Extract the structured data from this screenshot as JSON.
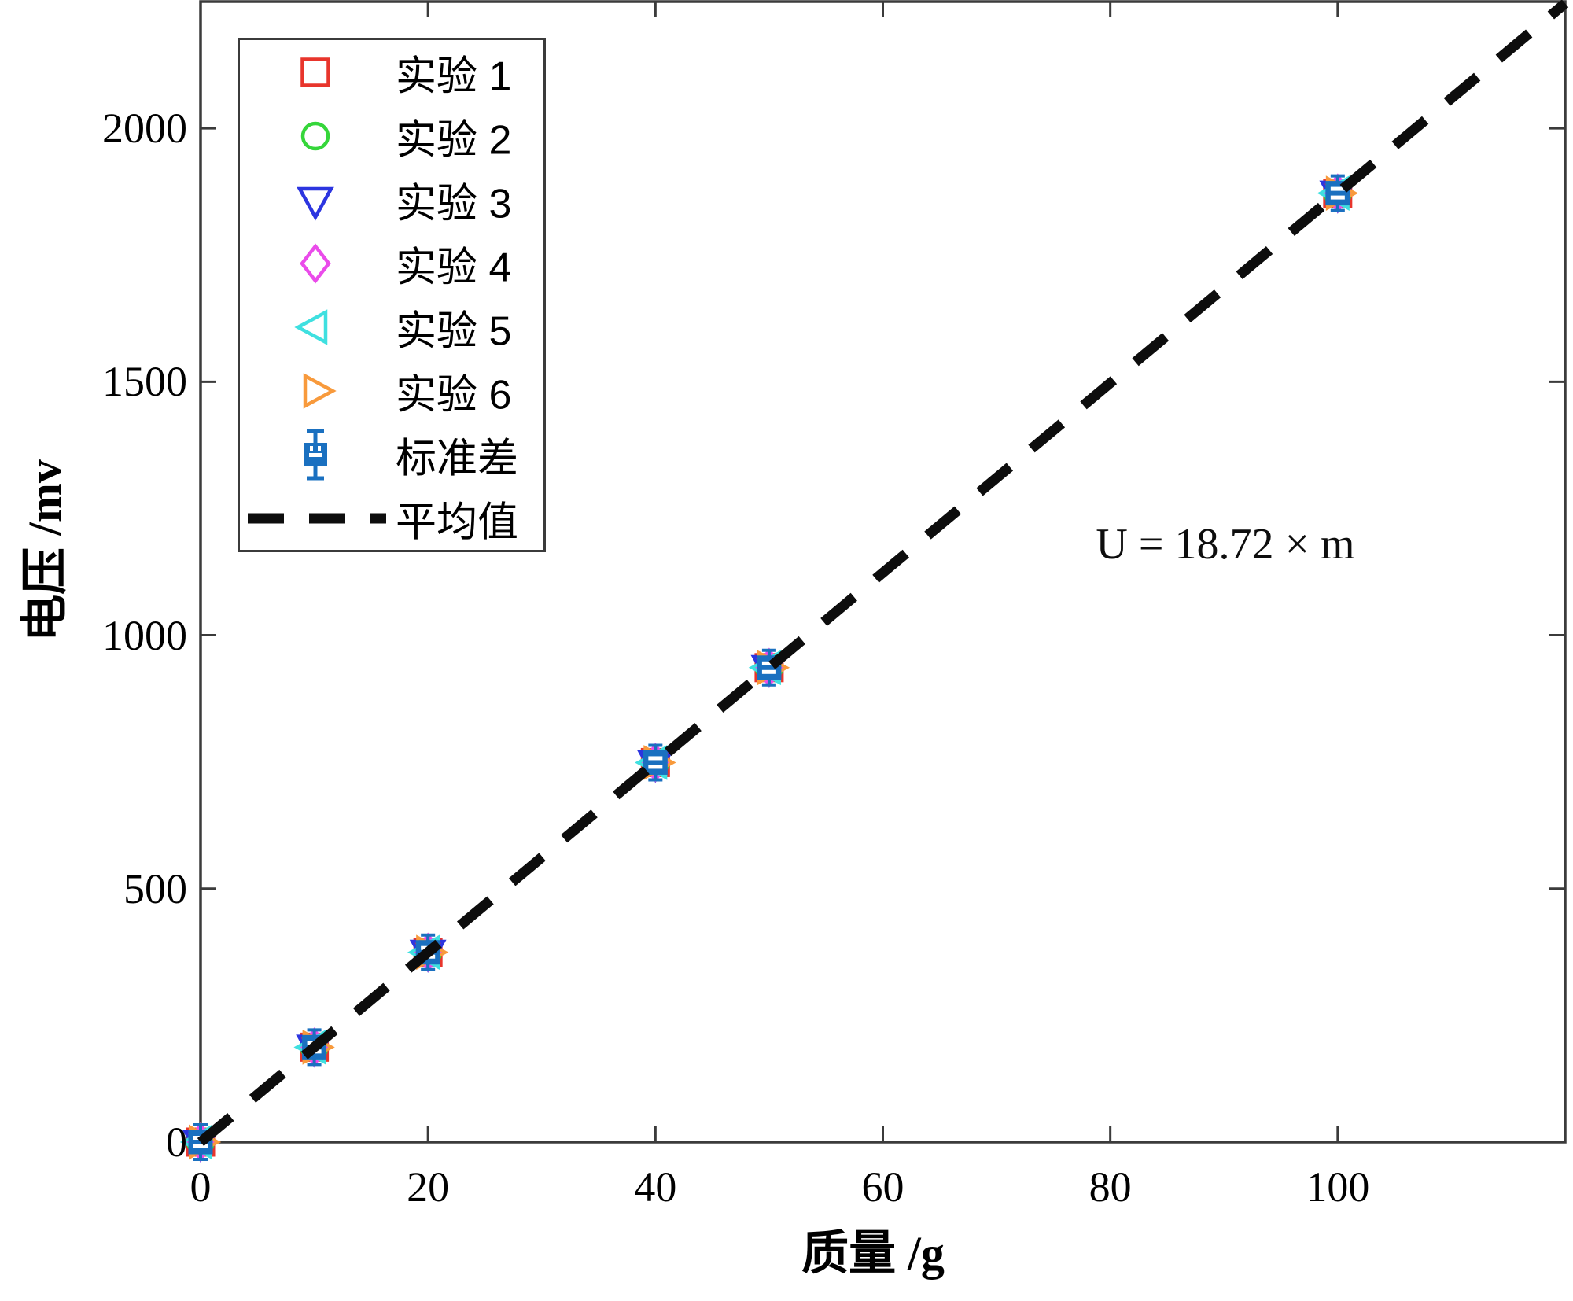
{
  "figure": {
    "background": "#ffffff",
    "frame_color": "#3b3b3b"
  },
  "chart_data": {
    "type": "scatter",
    "title": "",
    "xlabel": "质量 /g",
    "ylabel": "电压 /mv",
    "annotation": "U = 18.72 × m",
    "xlim": [
      0,
      120
    ],
    "ylim": [
      0,
      2250
    ],
    "grid": false,
    "x_tick_labels": [
      "0",
      "20",
      "40",
      "60",
      "80",
      "100"
    ],
    "x_tick_values": [
      0,
      20,
      40,
      60,
      80,
      100
    ],
    "y_tick_labels": [
      "0",
      "500",
      "1000",
      "1500",
      "2000"
    ],
    "y_tick_values": [
      0,
      500,
      1000,
      1500,
      2000
    ],
    "x_g": [
      0,
      10,
      20,
      40,
      50,
      100
    ],
    "mean_voltage_mv": [
      0,
      187.2,
      374.4,
      748.8,
      936.0,
      1872.0
    ],
    "fit": {
      "slope_mv_per_g": 18.72,
      "equation": "U = 18.72 × m"
    },
    "series": [
      {
        "name": "实验 1",
        "marker": "square",
        "color": "#e8352c",
        "x_g": [
          0,
          10,
          20,
          40,
          50,
          100
        ],
        "values_mv": [
          0,
          187.2,
          374.4,
          748.8,
          936.0,
          1872.0
        ]
      },
      {
        "name": "实验 2",
        "marker": "circle",
        "color": "#35d63a",
        "x_g": [
          0,
          10,
          20,
          40,
          50,
          100
        ],
        "values_mv": [
          0,
          187.2,
          374.4,
          748.8,
          936.0,
          1872.0
        ]
      },
      {
        "name": "实验 3",
        "marker": "triangle-down",
        "color": "#2c35e0",
        "x_g": [
          0,
          10,
          20,
          40,
          50,
          100
        ],
        "values_mv": [
          0,
          187.2,
          374.4,
          748.8,
          936.0,
          1872.0
        ]
      },
      {
        "name": "实验 4",
        "marker": "diamond",
        "color": "#ea4bea",
        "x_g": [
          0,
          10,
          20,
          40,
          50,
          100
        ],
        "values_mv": [
          0,
          187.2,
          374.4,
          748.8,
          936.0,
          1872.0
        ]
      },
      {
        "name": "实验 5",
        "marker": "triangle-left",
        "color": "#3fe0e0",
        "x_g": [
          0,
          10,
          20,
          40,
          50,
          100
        ],
        "values_mv": [
          0,
          187.2,
          374.4,
          748.8,
          936.0,
          1872.0
        ]
      },
      {
        "name": "实验 6",
        "marker": "triangle-right",
        "color": "#f89a3c",
        "x_g": [
          0,
          10,
          20,
          40,
          50,
          100
        ],
        "values_mv": [
          0,
          187.2,
          374.4,
          748.8,
          936.0,
          1872.0
        ]
      }
    ],
    "errorbar_series": {
      "name": "标准差",
      "color": "#1a70c0",
      "note": "standard-deviation error bars are smaller than the marker at every point"
    },
    "mean_line": {
      "name": "平均值",
      "style": "dashed",
      "color": "#0d0d0d"
    },
    "legend": {
      "position": "top-left",
      "entries": [
        {
          "label": "实验 1",
          "marker": "square",
          "color": "#e8352c"
        },
        {
          "label": "实验 2",
          "marker": "circle",
          "color": "#35d63a"
        },
        {
          "label": "实验 3",
          "marker": "triangle-down",
          "color": "#2c35e0"
        },
        {
          "label": "实验 4",
          "marker": "diamond",
          "color": "#ea4bea"
        },
        {
          "label": "实验 5",
          "marker": "triangle-left",
          "color": "#3fe0e0"
        },
        {
          "label": "实验 6",
          "marker": "triangle-right",
          "color": "#f89a3c"
        },
        {
          "label": "标准差",
          "marker": "errorbar",
          "color": "#1a70c0"
        },
        {
          "label": "平均值",
          "marker": "dashed-line",
          "color": "#0d0d0d"
        }
      ]
    }
  }
}
